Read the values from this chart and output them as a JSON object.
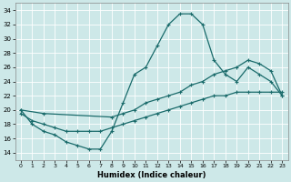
{
  "xlabel": "Humidex (Indice chaleur)",
  "bg_color": "#cde8e8",
  "grid_color": "#b8d8d8",
  "line_color": "#1a6b6b",
  "xlim": [
    -0.5,
    23.5
  ],
  "ylim": [
    13,
    35
  ],
  "xticks": [
    0,
    1,
    2,
    3,
    4,
    5,
    6,
    7,
    8,
    9,
    10,
    11,
    12,
    13,
    14,
    15,
    16,
    17,
    18,
    19,
    20,
    21,
    22,
    23
  ],
  "yticks": [
    14,
    16,
    18,
    20,
    22,
    24,
    26,
    28,
    30,
    32,
    34
  ],
  "line1_x": [
    0,
    1,
    2,
    3,
    4,
    5,
    6,
    7,
    8,
    9,
    10,
    11,
    12,
    13,
    14,
    15,
    16,
    17,
    18,
    19,
    20,
    21,
    22,
    23
  ],
  "line1_y": [
    20,
    18,
    17,
    16.5,
    15.5,
    15,
    14.5,
    14.5,
    17,
    21,
    25,
    26,
    29,
    32,
    33.5,
    33.5,
    32,
    27,
    25,
    24,
    26,
    25,
    24,
    22
  ],
  "line2_x": [
    0,
    2,
    8,
    9,
    10,
    11,
    12,
    13,
    14,
    15,
    16,
    17,
    18,
    19,
    20,
    21,
    22,
    23
  ],
  "line2_y": [
    20,
    19.5,
    19,
    19.5,
    20,
    21,
    21.5,
    22,
    22.5,
    23.5,
    24,
    25,
    25.5,
    26,
    27,
    26.5,
    25.5,
    22
  ],
  "line3_x": [
    0,
    1,
    2,
    3,
    4,
    5,
    6,
    7,
    8,
    9,
    10,
    11,
    12,
    13,
    14,
    15,
    16,
    17,
    18,
    19,
    20,
    21,
    22,
    23
  ],
  "line3_y": [
    19.5,
    18.5,
    18,
    17.5,
    17,
    17,
    17,
    17,
    17.5,
    18,
    18.5,
    19,
    19.5,
    20,
    20.5,
    21,
    21.5,
    22,
    22,
    22.5,
    22.5,
    22.5,
    22.5,
    22.5
  ]
}
